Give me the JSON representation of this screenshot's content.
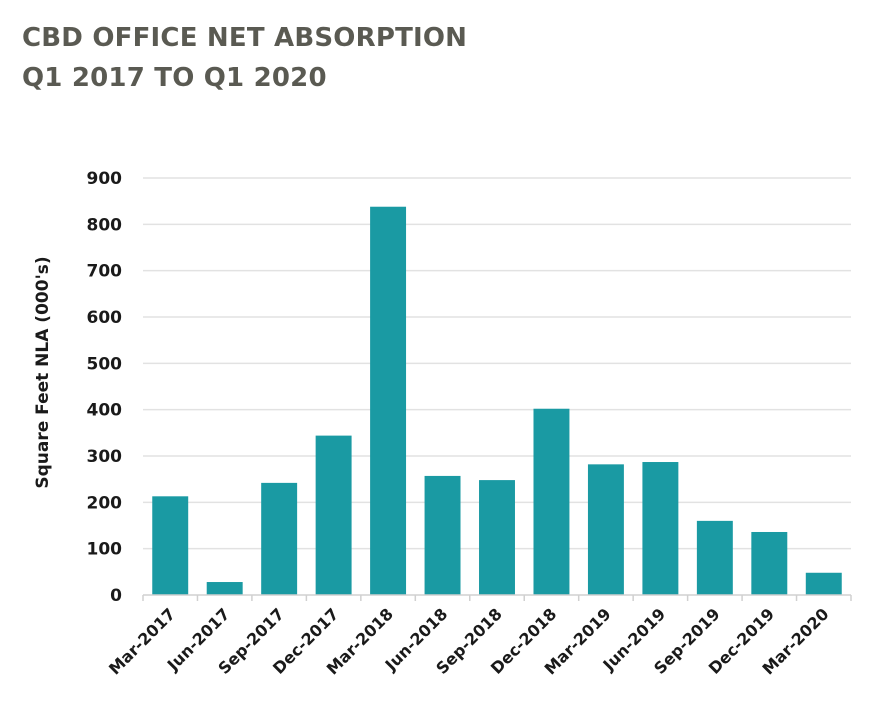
{
  "chart_data": {
    "type": "bar",
    "title": "CBD OFFICE NET ABSORPTION",
    "subtitle": "Q1 2017 TO Q1 2020",
    "xlabel": "",
    "ylabel": "Square Feet NLA (000's)",
    "ylim": [
      0,
      900
    ],
    "yticks": [
      0,
      100,
      200,
      300,
      400,
      500,
      600,
      700,
      800,
      900
    ],
    "grid": true,
    "legend": "none",
    "bar_color": "#1a9aa3",
    "categories": [
      "Mar-2017",
      "Jun-2017",
      "Sep-2017",
      "Dec-2017",
      "Mar-2018",
      "Jun-2018",
      "Sep-2018",
      "Dec-2018",
      "Mar-2019",
      "Jun-2019",
      "Sep-2019",
      "Dec-2019",
      "Mar-2020"
    ],
    "values": [
      213,
      28,
      242,
      344,
      838,
      257,
      248,
      402,
      282,
      287,
      160,
      136,
      48
    ]
  }
}
